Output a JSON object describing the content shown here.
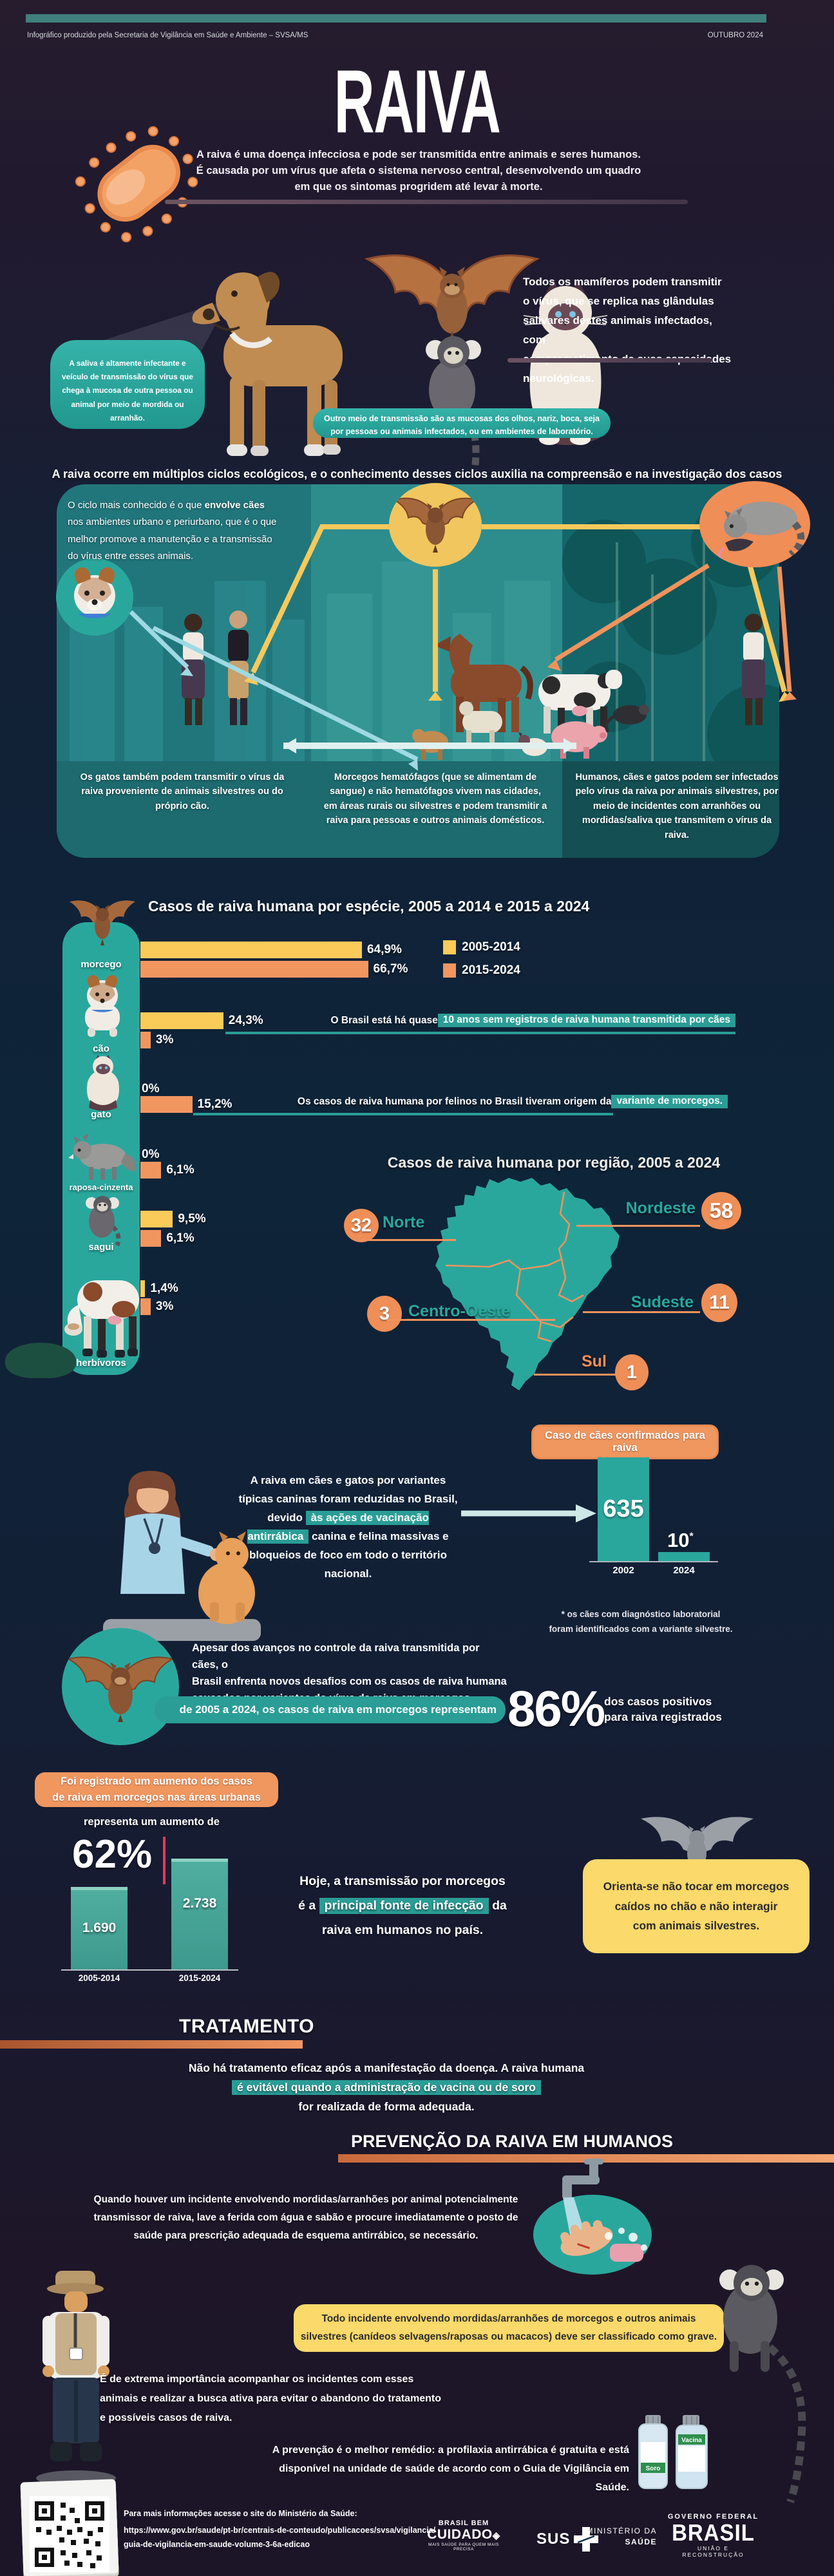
{
  "colors": {
    "accent_teal": "#2aa79d",
    "highlight_teal": "#2a9d96",
    "bar_yellow": "#fbcb5a",
    "bar_orange": "#f29660",
    "badge_orange": "#ef8e57",
    "box_yellow": "#fbd96a",
    "top_strip_teal": "#3f7f7c",
    "map_teal": "#2aa79c",
    "map_border_orange": "#f0935c"
  },
  "header": {
    "note": "Infográfico produzido pela Secretaria de Vigilância em Saúde e Ambiente – SVSA/MS",
    "date": "OUTUBRO 2024",
    "title": "RAIVA"
  },
  "intro": {
    "lines": [
      "A raiva é uma doença infecciosa e pode ser transmitida entre animais e seres humanos.",
      "É causada por um vírus que afeta o sistema nervoso central, desenvolvendo um quadro",
      "em que os sintomas progridem até levar à morte."
    ]
  },
  "mammals": {
    "lines": [
      "Todos os mamíferos podem transmitir",
      "o vírus, que se replica nas glândulas",
      "salivares destes animais infectados, com",
      "comprometimento de suas capacidades",
      "neurológicas."
    ],
    "saliva_bubble": "A saliva é altamente infectante e veículo de transmissão do vírus que chega à mucosa de outra pessoa ou animal por meio de mordida ou arranhão.",
    "mucosa_lines": [
      "Outro meio de transmissão são as mucosas dos olhos, nariz, boca, seja",
      "por pessoas ou animais infectados, ou em ambientes de laboratório."
    ]
  },
  "cycles": {
    "heading": "A raiva ocorre em múltiplos ciclos ecológicos, e o conhecimento desses ciclos auxilia na compreensão e na investigação dos casos",
    "note_pre": "O ciclo mais conhecido é o que ",
    "note_bold": "envolve cães",
    "note_post": " nos ambientes urbano e periurbano, que é o que melhor promove a manutenção e a transmissão do vírus entre esses animais.",
    "caption_cats": "Os gatos também podem transmitir o vírus da raiva proveniente de animais silvestres ou do próprio cão.",
    "caption_bats": "Morcegos hematófagos (que se alimentam de sangue) e não hematófagos vivem nas cidades, em áreas rurais ou silvestres e podem transmitir a raiva para pessoas e outros animais domésticos.",
    "caption_humans": "Humanos, cães e gatos podem ser infectados pelo vírus da raiva por animais silvestres, por meio de incidentes com arranhões ou mordidas/saliva que transmitem o vírus da raiva."
  },
  "species": {
    "title": "Casos de raiva humana por espécie, 2005 a 2014 e 2015 a 2024",
    "legend": [
      {
        "label": "2005-2014"
      },
      {
        "label": "2015-2024"
      }
    ],
    "rows": [
      {
        "label": "morcego",
        "pct1": "64,9%",
        "pct2": "66,7%"
      },
      {
        "label": "cão",
        "pct1": "24,3%",
        "pct2": "3%",
        "note_pre": "O Brasil está há quase ",
        "note_high": "10 anos sem registros de raiva humana transmitida por cães"
      },
      {
        "label": "gato",
        "pct1": "0%",
        "pct2": "15,2%",
        "note_pre": "Os casos de raiva humana por felinos no Brasil tiveram origem da ",
        "note_high": "variante de morcegos."
      },
      {
        "label": "raposa-cinzenta",
        "pct1": "0%",
        "pct2": "6,1%"
      },
      {
        "label": "sagui",
        "pct1": "9,5%",
        "pct2": "6,1%"
      },
      {
        "label": "herbívoros",
        "pct1": "1,4%",
        "pct2": "3%"
      }
    ]
  },
  "map": {
    "title": "Casos de raiva humana por região, 2005 a 2024",
    "regions": [
      {
        "name": "Norte",
        "value": "32"
      },
      {
        "name": "Nordeste",
        "value": "58"
      },
      {
        "name": "Centro-Oeste",
        "value": "3"
      },
      {
        "name": "Sudeste",
        "value": "11"
      },
      {
        "name": "Sul",
        "value": "1"
      }
    ]
  },
  "dogs": {
    "p1": "A raiva em cães e gatos por variantes típicas caninas foram reduzidas no Brasil, devido ",
    "p_high": "às ações de vacinação antirrábica",
    "p2": " canina e felina massivas e bloqueios de foco em todo o território nacional.",
    "box_title": "Caso de cães confirmados para raiva",
    "bar1_value": "635",
    "bar1_year": "2002",
    "bar2_value": "10",
    "bar2_star": "*",
    "bar2_year": "2024",
    "footnote_lines": [
      "* os cães com diagnóstico laboratorial",
      "foram identificados com a variante silvestre."
    ]
  },
  "bats86": {
    "lines": [
      "Apesar dos avanços no controle da raiva transmitida por cães, o",
      "Brasil enfrenta novos desafios com os casos de raiva humana",
      "causados por variantes do vírus da raiva em morcegos."
    ],
    "band": "de 2005 a 2024, os casos de raiva em morcegos representam",
    "pct": "86%",
    "caption_lines": [
      "dos casos positivos",
      "para raiva registrados"
    ]
  },
  "urban": {
    "box_lines": [
      "Foi registrado um aumento dos casos",
      "de raiva em morcegos nas áreas urbanas"
    ],
    "lead": "representa um aumento de",
    "pct": "62%",
    "bars": [
      {
        "value": "1.690",
        "label": "2005-2014"
      },
      {
        "value": "2.738",
        "label": "2015-2024"
      }
    ],
    "msg1": "Hoje, a transmissão por morcegos",
    "msg2_pre": "é a ",
    "msg2_high": "principal fonte de infecção",
    "msg2_post": " da",
    "msg3": "raiva em humanos no país.",
    "advice_lines": [
      "Orienta-se não tocar em morcegos",
      "caídos no chão e não interagir",
      "com  animais silvestres."
    ]
  },
  "treatment": {
    "heading": "TRATAMENTO",
    "line1": "Não há tratamento eficaz após a manifestação da doença. A raiva humana",
    "line2": "é evitável quando a administração de vacina ou de soro",
    "line3": "for realizada de forma adequada."
  },
  "prevention": {
    "heading": "PREVENÇÃO DA RAIVA EM HUMANOS",
    "p_lines": [
      "Quando houver um incidente envolvendo mordidas/arranhões por animal potencialmente",
      "transmissor de raiva, lave a ferida com água e sabão e procure imediatamente o posto de",
      "saúde para prescrição adequada de esquema antirrábico, se necessário."
    ],
    "warning_lines": [
      "Todo incidente envolvendo mordidas/arranhões de morcegos e outros animais",
      "silvestres (canídeos selvagens/raposas ou macacos) deve ser classificado como grave."
    ],
    "followup_lines": [
      "É  de extrema importância acompanhar os incidentes com esses",
      "animais e realizar a busca ativa para evitar o abandono do tratamento",
      "e possíveis casos de raiva."
    ],
    "note_lines": [
      "A prevenção é o melhor remédio: a profilaxia antirrábica é gratuita e está",
      "disponível na unidade de saúde  de acordo com o Guia de Vigilância em Saúde."
    ],
    "vial1": "Soro",
    "vial2": "Vacina"
  },
  "footer": {
    "info": "Para mais informações acesse o site do Ministério da Saúde:",
    "url_lines": [
      "https://www.gov.br/saude/pt-br/centrais-de-conteudo/publicacoes/svsa/vigilancia/",
      "guia-de-vigilancia-em-saude-volume-3-6a-edicao"
    ],
    "logo_bbc_top": "BRASIL BEM",
    "logo_bbc_main": "CUIDADO",
    "logo_bbc_tag": "MAIS SAÚDE PARA QUEM MAIS PRECISA",
    "logo_sus": "SUS",
    "logo_ms1": "MINISTÉRIO DA",
    "logo_ms2": "SAÚDE",
    "logo_gov_top": "GOVERNO FEDERAL",
    "logo_gov_main": "BRASIL",
    "logo_gov_tag": "UNIÃO E RECONSTRUÇÃO"
  },
  "chart_data": [
    {
      "type": "bar",
      "orientation": "horizontal",
      "title": "Casos de raiva humana por espécie, 2005 a 2014 e 2015 a 2024",
      "categories": [
        "morcego",
        "cão",
        "gato",
        "raposa-cinzenta",
        "sagui",
        "herbívoros"
      ],
      "series": [
        {
          "name": "2005-2014",
          "values": [
            64.9,
            24.3,
            0,
            0,
            9.5,
            1.4
          ]
        },
        {
          "name": "2015-2024",
          "values": [
            66.7,
            3,
            15.2,
            6.1,
            6.1,
            3
          ]
        }
      ],
      "unit": "%",
      "legend_position": "top-right",
      "annotations": [
        "O Brasil está há quase 10 anos sem registros de raiva humana transmitida por cães",
        "Os casos de raiva humana por felinos no Brasil tiveram origem da variante de morcegos."
      ]
    },
    {
      "type": "map",
      "title": "Casos de raiva humana por região, 2005 a 2024",
      "regions": {
        "Norte": 32,
        "Nordeste": 58,
        "Centro-Oeste": 3,
        "Sudeste": 11,
        "Sul": 1
      }
    },
    {
      "type": "bar",
      "title": "Caso de cães confirmados para raiva",
      "categories": [
        "2002",
        "2024"
      ],
      "values": [
        635,
        10
      ],
      "note": "* os cães com diagnóstico laboratorial foram identificados com a variante silvestre."
    },
    {
      "type": "bar",
      "title": "Aumento dos casos de raiva em morcegos nas áreas urbanas",
      "categories": [
        "2005-2014",
        "2015-2024"
      ],
      "values": [
        1690,
        2738
      ],
      "increase_pct": 62,
      "stat_share_pct": 86
    }
  ]
}
